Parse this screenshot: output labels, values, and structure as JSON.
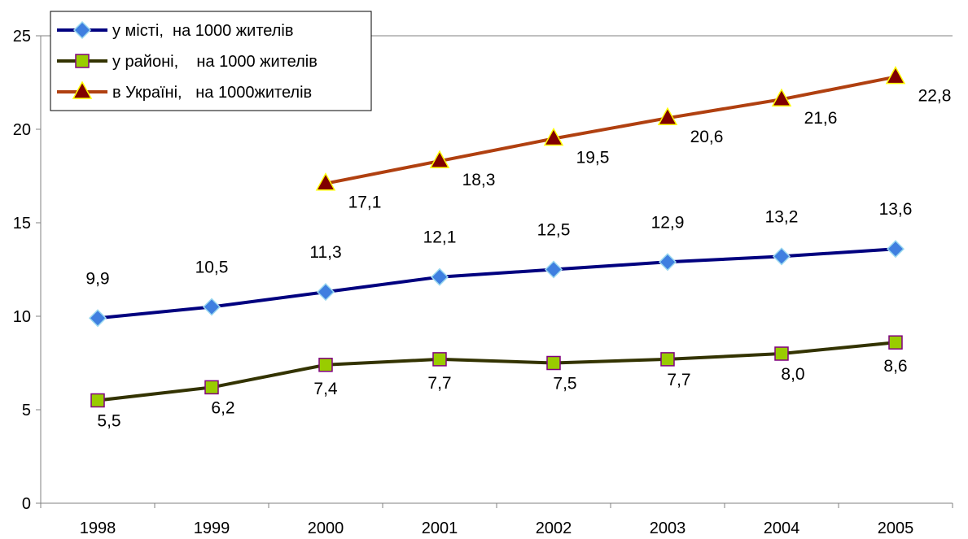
{
  "chart_data": {
    "type": "line",
    "categories": [
      "1998",
      "1999",
      "2000",
      "2001",
      "2002",
      "2003",
      "2004",
      "2005"
    ],
    "ylim": [
      0,
      25
    ],
    "yticks": [
      0,
      5,
      10,
      15,
      20,
      25
    ],
    "grid": "horizontal at 25 only",
    "legend_position": "top-left",
    "series": [
      {
        "name": "у місті,  на 1000 жителів",
        "color": "#00007f",
        "marker": "diamond",
        "marker_color": "#3f7fe0",
        "values": [
          9.9,
          10.5,
          11.3,
          12.1,
          12.5,
          12.9,
          13.2,
          13.6
        ],
        "labels": [
          "9,9",
          "10,5",
          "11,3",
          "12,1",
          "12,5",
          "12,9",
          "13,2",
          "13,6"
        ]
      },
      {
        "name": "у районі,    на 1000 жителів",
        "color": "#333300",
        "marker": "square",
        "marker_color": "#99cc00",
        "values": [
          5.5,
          6.2,
          7.4,
          7.7,
          7.5,
          7.7,
          8.0,
          8.6
        ],
        "labels": [
          "5,5",
          "6,2",
          "7,4",
          "7,7",
          "7,5",
          "7,7",
          "8,0",
          "8,6"
        ]
      },
      {
        "name": "в Україні,   на 1000жителів",
        "color": "#b04010",
        "marker": "triangle",
        "marker_color": "#800000",
        "values": [
          null,
          null,
          17.1,
          18.3,
          19.5,
          20.6,
          21.6,
          22.8
        ],
        "labels": [
          "",
          "",
          "17,1",
          "18,3",
          "19,5",
          "20,6",
          "21,6",
          "22,8"
        ]
      }
    ]
  }
}
